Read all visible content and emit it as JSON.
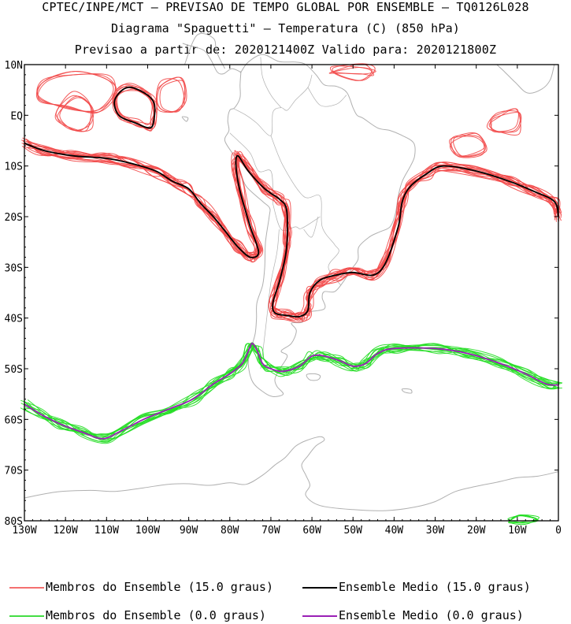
{
  "header": {
    "line1": "CPTEC/INPE/MCT – PREVISAO DE TEMPO GLOBAL POR ENSEMBLE – TQ0126L028",
    "line2": "Diagrama \"Spaguetti\" – Temperatura (C) (850 hPa)",
    "line3": "Previsao a partir de: 2020121400Z   Valido para: 2020121800Z"
  },
  "map": {
    "lat_labels": [
      "10N",
      "EQ",
      "10S",
      "20S",
      "30S",
      "40S",
      "50S",
      "60S",
      "70S",
      "80S"
    ],
    "lon_labels": [
      "130W",
      "120W",
      "110W",
      "100W",
      "90W",
      "80W",
      "70W",
      "60W",
      "50W",
      "40W",
      "30W",
      "20W",
      "10W",
      "0"
    ],
    "lat_range": [
      -80,
      10
    ],
    "lon_range": [
      -130,
      0
    ],
    "colors": {
      "coast": "#b0b0b0",
      "member_15": "#f24848",
      "mean_15": "#000000",
      "member_0": "#22dd22",
      "mean_0": "#9a1fb5"
    }
  },
  "legend": {
    "members_15": "Membros do Ensemble (15.0 graus)",
    "mean_15": "Ensemble Medio (15.0 graus)",
    "members_0": "Membros do Ensemble (0.0 graus)",
    "mean_0": "Ensemble Medio (0.0 graus)"
  }
}
